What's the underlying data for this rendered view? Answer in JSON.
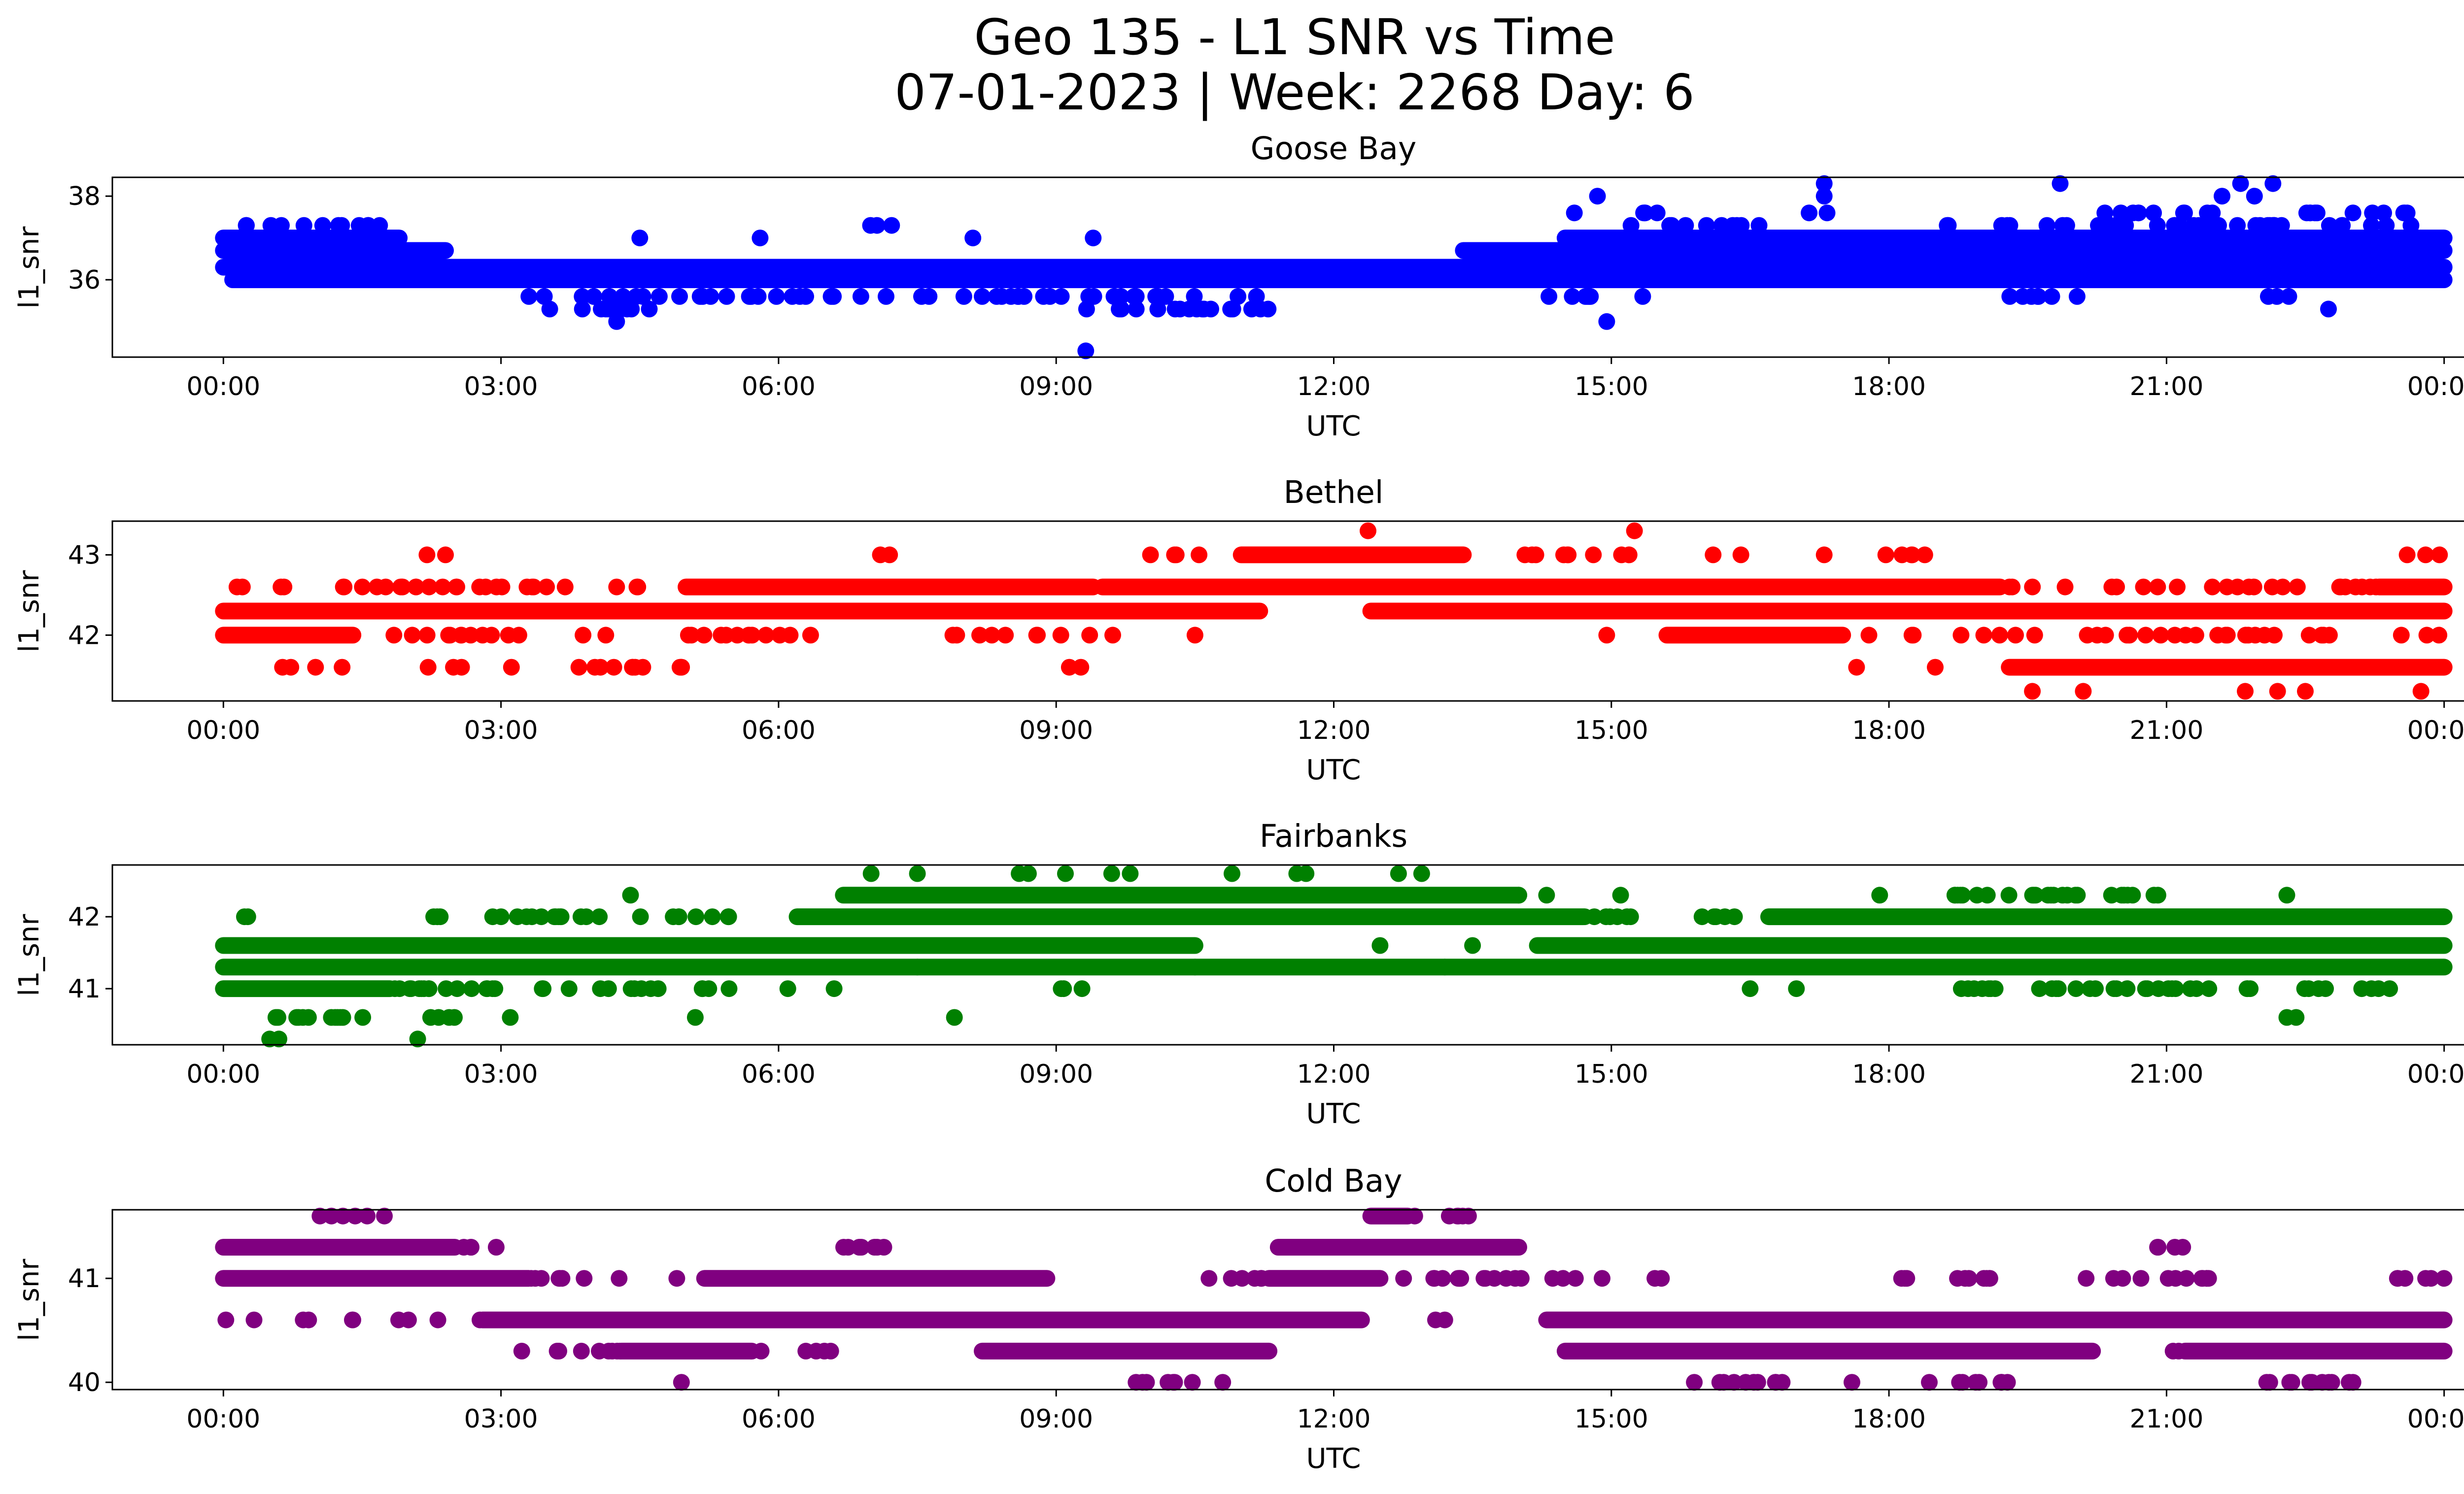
{
  "chart_data": {
    "type": "scatter",
    "title": "Geo 135 - L1 SNR vs Time",
    "subtitle": "07-01-2023 | Week: 2268 Day: 6",
    "xlabel": "UTC",
    "ylabel": "l1_snr",
    "xticks": [
      "00:00",
      "03:00",
      "06:00",
      "09:00",
      "12:00",
      "15:00",
      "18:00",
      "21:00",
      "00:00"
    ],
    "xlim_hours": [
      -1.2,
      25.2
    ],
    "panels": [
      {
        "name": "Goose Bay",
        "color": "#0000ff",
        "ylim": [
          34.15,
          38.45
        ],
        "yticks": [
          36,
          38
        ],
        "levels": [
          36.0,
          36.3,
          36.7,
          37.0
        ],
        "core_levels": [
          {
            "y": 36.0,
            "segments": [
              [
                0.1,
                11.5
              ],
              [
                11.5,
                24.0
              ]
            ]
          },
          {
            "y": 36.3,
            "segments": [
              [
                0.0,
                24.0
              ]
            ]
          },
          {
            "y": 36.7,
            "segments": [
              [
                0.0,
                2.4
              ],
              [
                13.4,
                24.0
              ]
            ]
          },
          {
            "y": 37.0,
            "segments": [
              [
                0.0,
                1.9
              ],
              [
                14.5,
                24.0
              ]
            ]
          }
        ],
        "sparse_levels": [
          {
            "y": 35.6,
            "segments": [
              [
                2.5,
                11.2
              ],
              [
                14.3,
                15.4
              ],
              [
                19.3,
                20.4
              ],
              [
                22.0,
                22.4
              ]
            ],
            "count": 70
          },
          {
            "y": 35.3,
            "segments": [
              [
                3.5,
                4.8
              ],
              [
                9.3,
                11.3
              ]
            ],
            "count": 28
          },
          {
            "y": 37.3,
            "segments": [
              [
                0.1,
                1.8
              ],
              [
                6.9,
                7.3
              ],
              [
                15.2,
                16.6
              ],
              [
                18.6,
                23.8
              ]
            ],
            "count": 60
          },
          {
            "y": 37.6,
            "segments": [
              [
                15.3,
                15.8
              ],
              [
                17.1,
                17.4
              ],
              [
                20.2,
                21.6
              ],
              [
                22.2,
                23.6
              ]
            ],
            "count": 26
          }
        ],
        "outliers": [
          [
            4.25,
            35.0
          ],
          [
            4.5,
            37.0
          ],
          [
            5.8,
            37.0
          ],
          [
            8.1,
            37.0
          ],
          [
            9.32,
            34.3
          ],
          [
            9.4,
            37.0
          ],
          [
            14.85,
            38.0
          ],
          [
            14.95,
            35.0
          ],
          [
            14.6,
            37.6
          ],
          [
            17.3,
            38.3
          ],
          [
            17.3,
            38.0
          ],
          [
            19.85,
            38.3
          ],
          [
            21.6,
            38.0
          ],
          [
            21.8,
            38.3
          ],
          [
            21.95,
            38.0
          ],
          [
            22.15,
            38.3
          ],
          [
            22.1,
            35.6
          ],
          [
            22.75,
            35.3
          ],
          [
            22.9,
            37.3
          ],
          [
            23.6,
            37.6
          ]
        ]
      },
      {
        "name": "Bethel",
        "color": "#ff0000",
        "ylim": [
          41.18,
          43.42
        ],
        "yticks": [
          42,
          43
        ],
        "levels": [
          42.0,
          42.3,
          42.6,
          43.0
        ],
        "core_levels": [
          {
            "y": 42.3,
            "segments": [
              [
                0.0,
                11.2
              ],
              [
                12.4,
                24.0
              ]
            ]
          },
          {
            "y": 42.6,
            "segments": [
              [
                5.0,
                9.4
              ],
              [
                9.5,
                19.2
              ],
              [
                23.3,
                24.0
              ]
            ]
          },
          {
            "y": 42.0,
            "segments": [
              [
                0.0,
                1.4
              ],
              [
                15.6,
                17.5
              ]
            ]
          },
          {
            "y": 41.6,
            "segments": [
              [
                19.3,
                24.0
              ]
            ]
          },
          {
            "y": 43.0,
            "segments": [
              [
                11.0,
                13.4
              ]
            ]
          }
        ],
        "sparse_levels": [
          {
            "y": 42.6,
            "segments": [
              [
                0.0,
                4.8
              ],
              [
                19.2,
                23.3
              ]
            ],
            "count": 55
          },
          {
            "y": 42.0,
            "segments": [
              [
                1.4,
                6.6
              ],
              [
                7.8,
                9.8
              ],
              [
                17.5,
                24.0
              ]
            ],
            "count": 70
          },
          {
            "y": 41.6,
            "segments": [
              [
                0.6,
                1.4
              ],
              [
                2.2,
                5.0
              ],
              [
                9.0,
                9.4
              ]
            ],
            "count": 22
          },
          {
            "y": 43.0,
            "segments": [
              [
                10.0,
                10.6
              ],
              [
                14.0,
                15.2
              ],
              [
                17.7,
                18.4
              ]
            ],
            "count": 18
          }
        ],
        "outliers": [
          [
            2.2,
            43.0
          ],
          [
            2.4,
            43.0
          ],
          [
            7.1,
            43.0
          ],
          [
            7.2,
            43.0
          ],
          [
            12.37,
            43.3
          ],
          [
            15.25,
            43.3
          ],
          [
            16.1,
            43.0
          ],
          [
            16.4,
            43.0
          ],
          [
            17.3,
            43.0
          ],
          [
            10.5,
            42.0
          ],
          [
            14.95,
            42.0
          ],
          [
            17.65,
            41.6
          ],
          [
            18.5,
            41.6
          ],
          [
            19.55,
            41.3
          ],
          [
            20.1,
            41.3
          ],
          [
            21.85,
            41.3
          ],
          [
            22.2,
            41.3
          ],
          [
            22.5,
            41.3
          ],
          [
            23.75,
            41.3
          ],
          [
            23.6,
            43.0
          ],
          [
            23.8,
            43.0
          ],
          [
            23.95,
            43.0
          ]
        ]
      },
      {
        "name": "Fairbanks",
        "color": "#008000",
        "ylim": [
          40.22,
          42.72
        ],
        "yticks": [
          41,
          42
        ],
        "levels": [
          41.0,
          41.3,
          41.6,
          42.0,
          42.3
        ],
        "core_levels": [
          {
            "y": 41.3,
            "segments": [
              [
                0.0,
                7.5
              ],
              [
                7.5,
                13.2
              ],
              [
                13.2,
                24.0
              ]
            ]
          },
          {
            "y": 41.6,
            "segments": [
              [
                0.0,
                10.5
              ],
              [
                14.2,
                24.0
              ]
            ]
          },
          {
            "y": 42.0,
            "segments": [
              [
                6.2,
                14.7
              ],
              [
                16.7,
                24.0
              ]
            ]
          },
          {
            "y": 42.3,
            "segments": [
              [
                6.7,
                14.0
              ]
            ]
          },
          {
            "y": 41.0,
            "segments": [
              [
                0.0,
                1.8
              ]
            ]
          }
        ],
        "sparse_levels": [
          {
            "y": 41.0,
            "segments": [
              [
                1.8,
                5.8
              ],
              [
                9.0,
                9.4
              ],
              [
                18.7,
                23.6
              ]
            ],
            "count": 70
          },
          {
            "y": 42.0,
            "segments": [
              [
                0.0,
                0.3
              ],
              [
                1.8,
                5.6
              ],
              [
                14.7,
                16.4
              ]
            ],
            "count": 40
          },
          {
            "y": 40.6,
            "segments": [
              [
                0.3,
                1.6
              ],
              [
                2.2,
                2.6
              ]
            ],
            "count": 16
          },
          {
            "y": 42.3,
            "segments": [
              [
                18.7,
                21.0
              ]
            ],
            "count": 25
          }
        ],
        "outliers": [
          [
            0.5,
            40.3
          ],
          [
            0.6,
            40.3
          ],
          [
            2.1,
            40.3
          ],
          [
            3.1,
            40.6
          ],
          [
            5.1,
            40.6
          ],
          [
            7.9,
            40.6
          ],
          [
            22.3,
            40.6
          ],
          [
            22.4,
            40.6
          ],
          [
            4.4,
            42.3
          ],
          [
            15.1,
            42.3
          ],
          [
            17.9,
            42.3
          ],
          [
            22.3,
            42.3
          ],
          [
            7.0,
            42.6
          ],
          [
            7.5,
            42.6
          ],
          [
            8.6,
            42.6
          ],
          [
            8.7,
            42.6
          ],
          [
            9.1,
            42.6
          ],
          [
            9.6,
            42.6
          ],
          [
            9.8,
            42.6
          ],
          [
            10.9,
            42.6
          ],
          [
            11.6,
            42.6
          ],
          [
            11.7,
            42.6
          ],
          [
            12.7,
            42.6
          ],
          [
            12.95,
            42.6
          ],
          [
            12.5,
            41.6
          ],
          [
            13.5,
            41.6
          ],
          [
            6.6,
            41.0
          ],
          [
            16.5,
            41.0
          ],
          [
            17.0,
            41.0
          ],
          [
            10.5,
            41.3
          ],
          [
            14.0,
            42.3
          ],
          [
            14.3,
            42.3
          ],
          [
            6.1,
            41.0
          ]
        ]
      },
      {
        "name": "Cold Bay",
        "color": "#800080",
        "ylim": [
          39.93,
          41.66
        ],
        "yticks": [
          40,
          41
        ],
        "levels": [
          40.0,
          40.3,
          40.6,
          41.0,
          41.3,
          41.6
        ],
        "core_levels": [
          {
            "y": 41.0,
            "segments": [
              [
                0.0,
                3.3
              ],
              [
                5.2,
                8.9
              ],
              [
                11.3,
                12.5
              ]
            ]
          },
          {
            "y": 41.3,
            "segments": [
              [
                0.0,
                2.5
              ],
              [
                11.4,
                14.0
              ]
            ]
          },
          {
            "y": 40.6,
            "segments": [
              [
                2.8,
                12.3
              ],
              [
                14.3,
                24.0
              ]
            ]
          },
          {
            "y": 40.3,
            "segments": [
              [
                4.3,
                5.7
              ],
              [
                8.2,
                11.3
              ],
              [
                14.5,
                20.2
              ],
              [
                21.2,
                24.0
              ]
            ]
          },
          {
            "y": 41.6,
            "segments": [
              [
                12.4,
                12.8
              ]
            ]
          }
        ],
        "sparse_levels": [
          {
            "y": 41.0,
            "segments": [
              [
                3.3,
                4.3
              ],
              [
                10.6,
                11.3
              ],
              [
                12.7,
                14.8
              ],
              [
                15.3,
                15.6
              ],
              [
                18.0,
                19.3
              ],
              [
                20.1,
                21.6
              ],
              [
                23.4,
                24.0
              ]
            ],
            "count": 60
          },
          {
            "y": 41.3,
            "segments": [
              [
                2.5,
                3.0
              ],
              [
                6.5,
                7.4
              ],
              [
                20.8,
                21.2
              ]
            ],
            "count": 16
          },
          {
            "y": 40.6,
            "segments": [
              [
                0.0,
                2.8
              ]
            ],
            "count": 10
          },
          {
            "y": 40.3,
            "segments": [
              [
                3.0,
                4.3
              ],
              [
                5.7,
                6.6
              ],
              [
                21.0,
                21.2
              ]
            ],
            "count": 16
          },
          {
            "y": 40.0,
            "segments": [
              [
                9.7,
                10.5
              ],
              [
                15.7,
                16.9
              ],
              [
                18.3,
                19.3
              ],
              [
                22.0,
                23.3
              ]
            ],
            "count": 36
          },
          {
            "y": 41.6,
            "segments": [
              [
                1.0,
                1.8
              ],
              [
                12.8,
                13.5
              ]
            ],
            "count": 12
          }
        ],
        "outliers": [
          [
            4.9,
            41.0
          ],
          [
            4.95,
            40.0
          ],
          [
            10.8,
            40.0
          ],
          [
            13.1,
            40.6
          ],
          [
            13.2,
            40.6
          ],
          [
            14.9,
            41.0
          ],
          [
            17.6,
            40.0
          ],
          [
            23.8,
            41.0
          ]
        ]
      }
    ]
  }
}
